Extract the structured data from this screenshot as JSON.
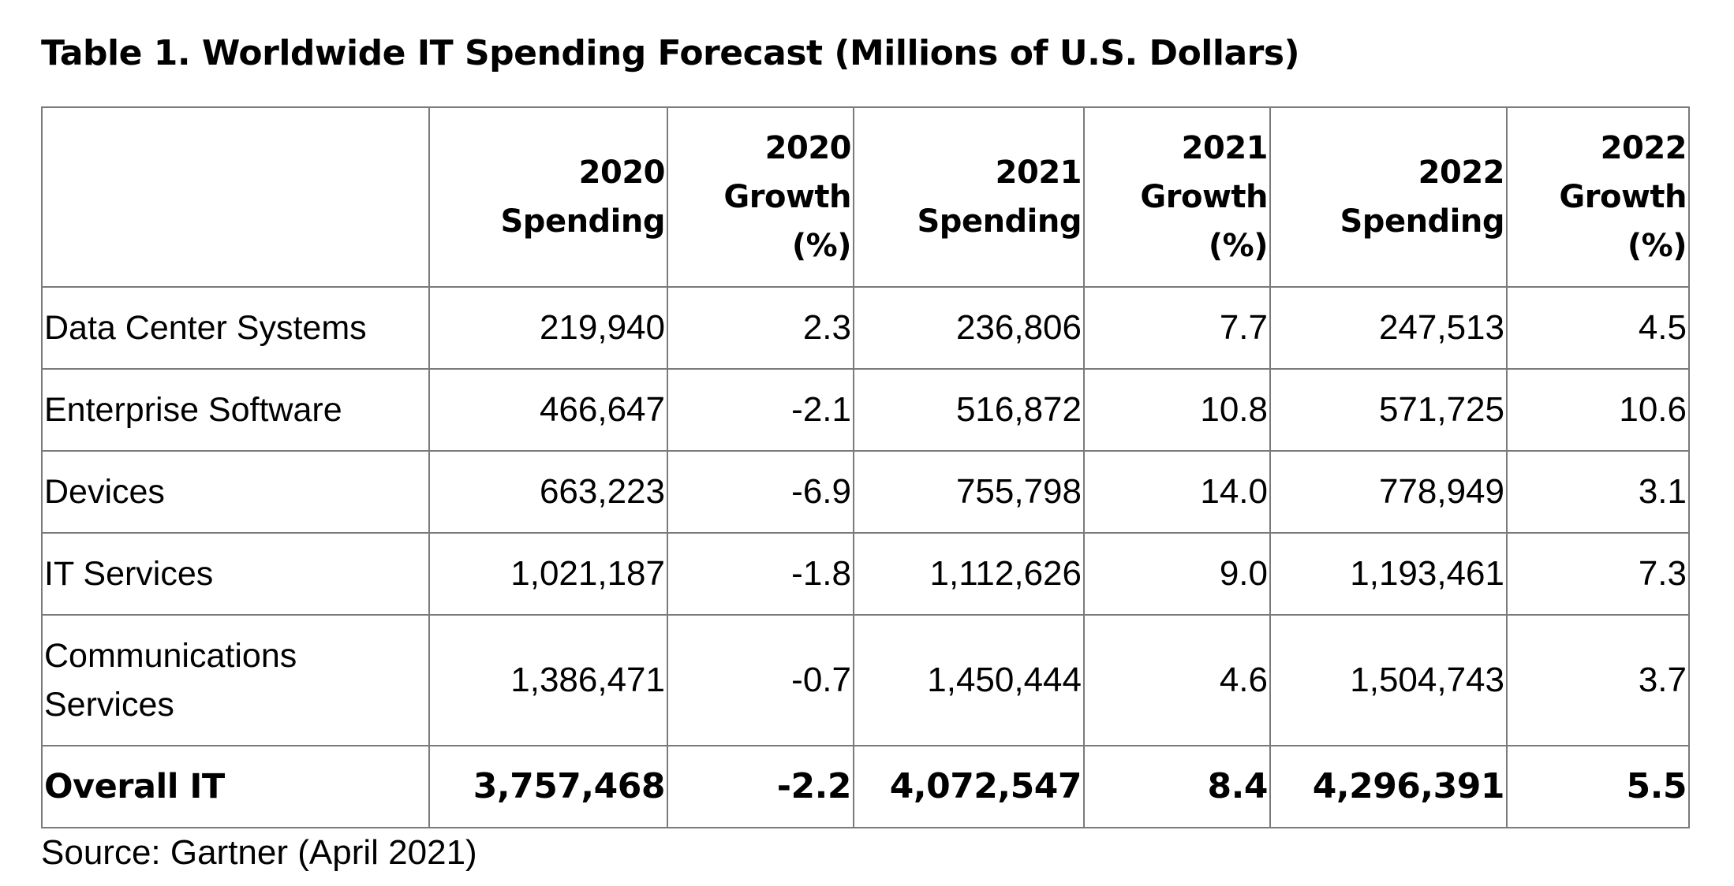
{
  "title": "Table 1. Worldwide IT Spending Forecast (Millions of U.S. Dollars)",
  "table": {
    "headers": [
      "",
      "2020 Spending",
      "2020 Growth (%)",
      "2021 Spending",
      "2021 Growth (%)",
      "2022 Spending",
      "2022 Growth (%)"
    ],
    "rows": [
      {
        "label": "Data Center Systems",
        "cells": [
          "219,940",
          "2.3",
          "236,806",
          "7.7",
          "247,513",
          "4.5"
        ]
      },
      {
        "label": "Enterprise Software",
        "cells": [
          "466,647",
          "-2.1",
          "516,872",
          "10.8",
          "571,725",
          "10.6"
        ]
      },
      {
        "label": "Devices",
        "cells": [
          "663,223",
          "-6.9",
          "755,798",
          "14.0",
          "778,949",
          "3.1"
        ]
      },
      {
        "label": "IT Services",
        "cells": [
          "1,021,187",
          "-1.8",
          "1,112,626",
          "9.0",
          "1,193,461",
          "7.3"
        ]
      },
      {
        "label": "Communications Services",
        "cells": [
          "1,386,471",
          "-0.7",
          "1,450,444",
          "4.6",
          "1,504,743",
          "3.7"
        ]
      },
      {
        "label": "Overall IT",
        "cells": [
          "3,757,468",
          "-2.2",
          "4,072,547",
          "8.4",
          "4,296,391",
          "5.5"
        ]
      }
    ]
  },
  "source": "Source: Gartner (April 2021)"
}
